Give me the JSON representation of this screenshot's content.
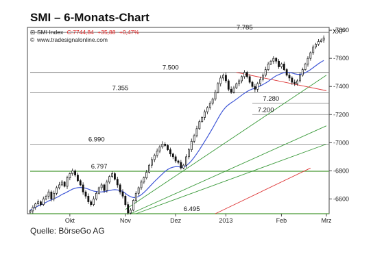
{
  "heading": "SMI – 6-Monats-Chart",
  "source": "Quelle: BörseGo AG",
  "colors": {
    "candle": "#111111",
    "ma": "#3d55d6",
    "support": "#66aa55",
    "green_trend": "#3a9a3a",
    "red_trend": "#dd3333",
    "level": "#777777",
    "info_change": "#dd2222"
  },
  "chart_data": {
    "type": "candlestick",
    "legend": {
      "instrument": "SMI Index",
      "price": "C:7744,84",
      "change": "+35,88",
      "change_pct": "+0,47%",
      "website": "www.tradesignalonline.com"
    },
    "currency_label": "XXP",
    "y_ticks": [
      {
        "v": 6600,
        "label": "6600"
      },
      {
        "v": 6800,
        "label": "6800"
      },
      {
        "v": 7000,
        "label": "7000"
      },
      {
        "v": 7200,
        "label": "7200"
      },
      {
        "v": 7400,
        "label": "7400"
      },
      {
        "v": 7600,
        "label": "7600"
      },
      {
        "v": 7800,
        "label": "7800"
      }
    ],
    "ylim": [
      6495,
      7820
    ],
    "x_ticks": [
      {
        "i": 15,
        "label": "Okt"
      },
      {
        "i": 36,
        "label": "Nov"
      },
      {
        "i": 55,
        "label": "Dez"
      },
      {
        "i": 74,
        "label": "2013"
      },
      {
        "i": 95,
        "label": "Feb"
      },
      {
        "i": 112,
        "label": "Mrz"
      }
    ],
    "n_candles": 112,
    "levels": [
      {
        "v": 7785,
        "label": "7.785",
        "label_i": 78,
        "kind": "resistance",
        "from_i": 0
      },
      {
        "v": 7500,
        "label": "7.500",
        "label_i": 50,
        "kind": "resistance",
        "from_i": 0
      },
      {
        "v": 7355,
        "label": "7.355",
        "label_i": 31,
        "kind": "resistance",
        "from_i": 0
      },
      {
        "v": 7280,
        "label": "7.280",
        "label_i": 88,
        "kind": "resistance",
        "from_i": 84
      },
      {
        "v": 7200,
        "label": "7.200",
        "label_i": 86,
        "kind": "resistance",
        "from_i": 84
      },
      {
        "v": 6990,
        "label": "6.990",
        "label_i": 22,
        "kind": "resistance",
        "from_i": 0
      },
      {
        "v": 6797,
        "label": "6.797",
        "label_i": 23,
        "kind": "support",
        "from_i": 0
      },
      {
        "v": 6495,
        "label": "6.495",
        "label_i": 58,
        "kind": "support",
        "from_i": 0
      }
    ],
    "trendlines": [
      {
        "color": "green_trend",
        "from": [
          36,
          6525
        ],
        "to": [
          112,
          7480
        ]
      },
      {
        "color": "green_trend",
        "from": [
          38,
          6495
        ],
        "to": [
          112,
          7120
        ]
      },
      {
        "color": "green_trend",
        "from": [
          40,
          6495
        ],
        "to": [
          112,
          6990
        ]
      },
      {
        "color": "red_trend",
        "from": [
          70,
          6495
        ],
        "to": [
          106,
          6820
        ]
      },
      {
        "color": "red_trend",
        "from": [
          78,
          7500
        ],
        "to": [
          112,
          7370
        ]
      }
    ],
    "closes": [
      6515,
      6540,
      6565,
      6580,
      6560,
      6600,
      6620,
      6650,
      6600,
      6640,
      6680,
      6700,
      6720,
      6690,
      6750,
      6780,
      6800,
      6770,
      6730,
      6700,
      6650,
      6620,
      6580,
      6560,
      6600,
      6640,
      6680,
      6700,
      6660,
      6720,
      6760,
      6780,
      6740,
      6700,
      6650,
      6620,
      6560,
      6500,
      6520,
      6590,
      6640,
      6680,
      6720,
      6750,
      6790,
      6840,
      6880,
      6910,
      6940,
      6970,
      6990,
      6980,
      6950,
      6920,
      6900,
      6870,
      6860,
      6820,
      6840,
      6900,
      6950,
      7010,
      7050,
      7100,
      7150,
      7180,
      7220,
      7250,
      7280,
      7310,
      7360,
      7420,
      7460,
      7480,
      7440,
      7380,
      7360,
      7390,
      7420,
      7440,
      7470,
      7500,
      7470,
      7430,
      7400,
      7380,
      7420,
      7450,
      7480,
      7520,
      7560,
      7580,
      7600,
      7580,
      7540,
      7560,
      7520,
      7480,
      7460,
      7430,
      7420,
      7440,
      7480,
      7520,
      7560,
      7600,
      7640,
      7680,
      7700,
      7720,
      7730,
      7745
    ],
    "ma20": [
      6520,
      6530,
      6540,
      6550,
      6558,
      6566,
      6576,
      6586,
      6594,
      6602,
      6610,
      6620,
      6632,
      6640,
      6650,
      6660,
      6670,
      6676,
      6680,
      6682,
      6680,
      6676,
      6670,
      6662,
      6656,
      6652,
      6650,
      6650,
      6652,
      6656,
      6660,
      6664,
      6666,
      6664,
      6660,
      6654,
      6640,
      6626,
      6616,
      6610,
      6610,
      6618,
      6630,
      6646,
      6664,
      6684,
      6704,
      6724,
      6742,
      6760,
      6778,
      6796,
      6810,
      6820,
      6826,
      6830,
      6830,
      6826,
      6826,
      6836,
      6852,
      6872,
      6896,
      6922,
      6950,
      6980,
      7010,
      7040,
      7072,
      7104,
      7138,
      7172,
      7204,
      7232,
      7254,
      7270,
      7284,
      7296,
      7310,
      7324,
      7338,
      7352,
      7364,
      7374,
      7382,
      7388,
      7396,
      7404,
      7414,
      7424,
      7436,
      7450,
      7464,
      7476,
      7484,
      7492,
      7498,
      7500,
      7500,
      7496,
      7490,
      7486,
      7486,
      7490,
      7498,
      7508,
      7520,
      7534,
      7548,
      7562,
      7574,
      7585
    ]
  }
}
